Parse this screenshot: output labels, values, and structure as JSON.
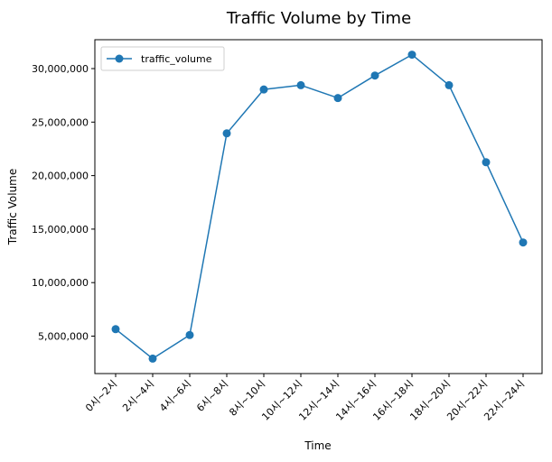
{
  "chart_data": {
    "type": "line",
    "title": "Traffic Volume by Time",
    "xlabel": "Time",
    "ylabel": "Traffic Volume",
    "categories": [
      "0시~2시",
      "2시~4시",
      "4시~6시",
      "6시~8시",
      "8시~10시",
      "10시~12시",
      "12시~14시",
      "14시~16시",
      "16시~18시",
      "18시~20시",
      "20시~22시",
      "22시~24시"
    ],
    "series": [
      {
        "name": "traffic_volume",
        "color": "#1f77b4",
        "marker": "circle",
        "values": [
          5650000,
          2900000,
          5100000,
          23950000,
          28050000,
          28450000,
          27250000,
          29350000,
          31300000,
          28450000,
          21250000,
          13750000
        ]
      }
    ],
    "yticks": [
      5000000,
      10000000,
      15000000,
      20000000,
      25000000,
      30000000
    ],
    "ytick_labels": [
      "5,000,000",
      "10,000,000",
      "15,000,000",
      "20,000,000",
      "25,000,000",
      "30,000,000"
    ],
    "ylim": [
      1500000,
      32700000
    ],
    "grid": false,
    "legend_position": "top-left"
  }
}
